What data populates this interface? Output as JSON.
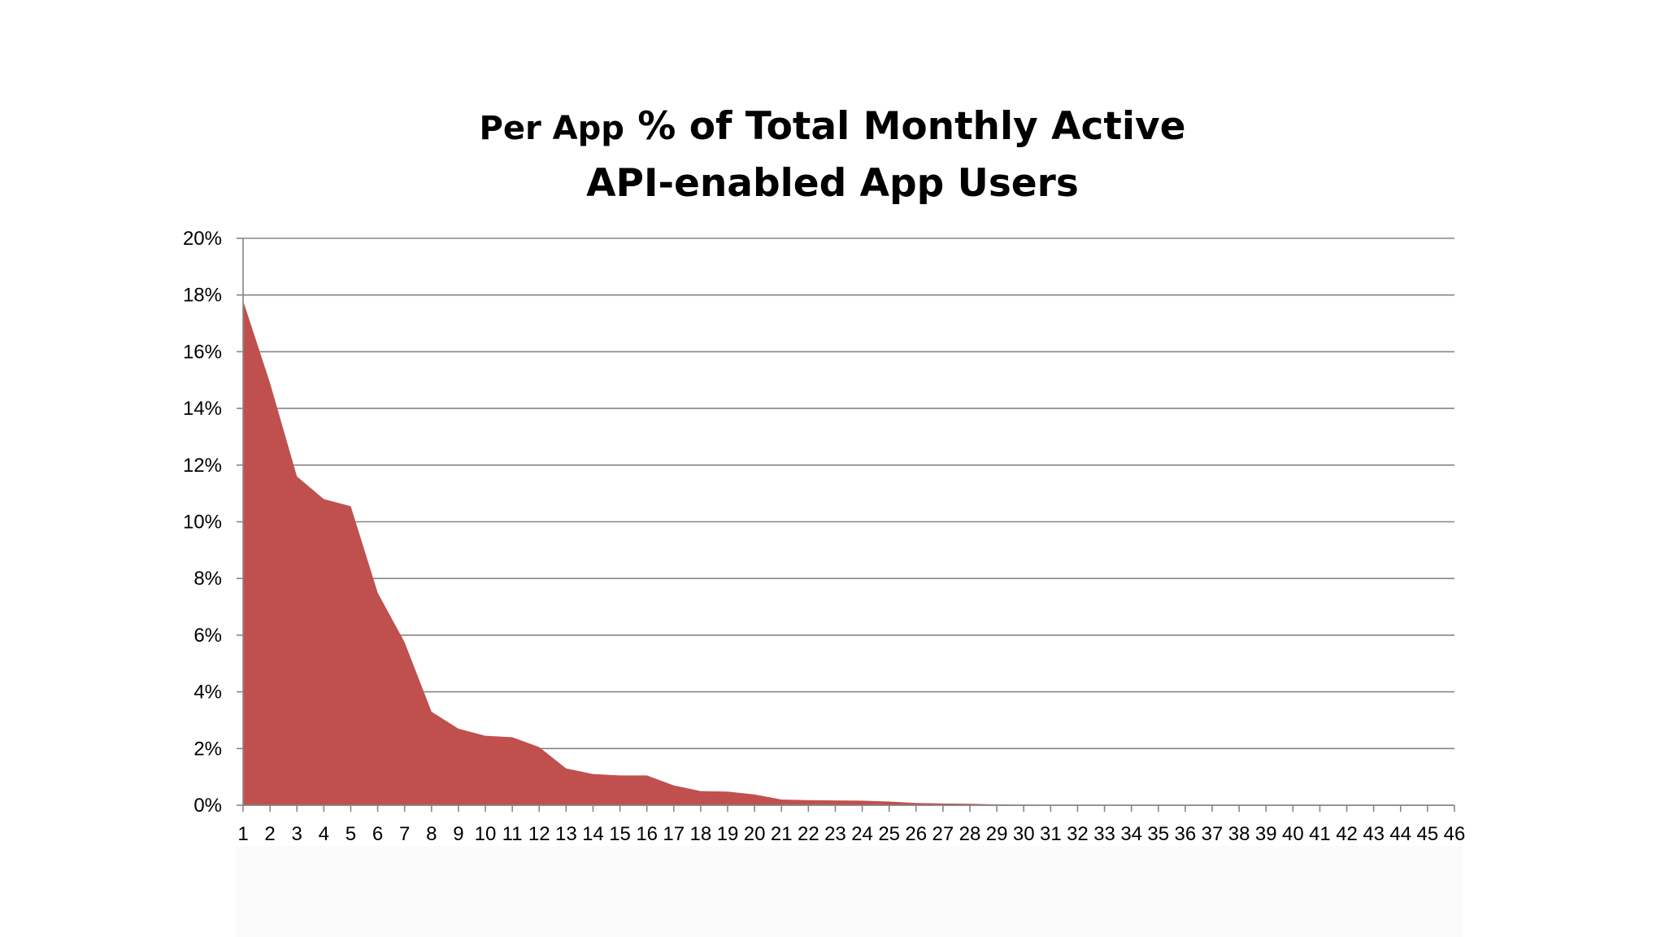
{
  "chart_data": {
    "type": "area",
    "title_line1_small": "Per App",
    "title_line1_rest": "% of Total Monthly Active",
    "title_line2": "API-enabled App Users",
    "xlabel": "",
    "ylabel": "",
    "ylim": [
      0,
      20
    ],
    "y_ticks": [
      0,
      2,
      4,
      6,
      8,
      10,
      12,
      14,
      16,
      18,
      20
    ],
    "y_tick_labels": [
      "0%",
      "2%",
      "4%",
      "6%",
      "8%",
      "10%",
      "12%",
      "14%",
      "16%",
      "18%",
      "20%"
    ],
    "categories": [
      "1",
      "2",
      "3",
      "4",
      "5",
      "6",
      "7",
      "8",
      "9",
      "10",
      "11",
      "12",
      "13",
      "14",
      "15",
      "16",
      "17",
      "18",
      "19",
      "20",
      "21",
      "22",
      "23",
      "24",
      "25",
      "26",
      "27",
      "28",
      "29",
      "30",
      "31",
      "32",
      "33",
      "34",
      "35",
      "36",
      "37",
      "38",
      "39",
      "40",
      "41",
      "42",
      "43",
      "44",
      "45",
      "46"
    ],
    "series": [
      {
        "name": "% of Total Monthly Active API-enabled App Users",
        "color": "#c0504d",
        "values": [
          17.8,
          14.9,
          11.6,
          10.8,
          10.55,
          7.5,
          5.75,
          3.3,
          2.7,
          2.45,
          2.4,
          2.05,
          1.3,
          1.1,
          1.05,
          1.05,
          0.7,
          0.5,
          0.48,
          0.38,
          0.2,
          0.18,
          0.17,
          0.16,
          0.13,
          0.08,
          0.06,
          0.05,
          0.03,
          0.02,
          0.01,
          0,
          0,
          0,
          0,
          0,
          0,
          0,
          0,
          0,
          0,
          0,
          0,
          0,
          0,
          0
        ]
      }
    ],
    "grid": true,
    "legend": "none"
  },
  "colors": {
    "area_fill": "#c0504d",
    "gridline": "#868686",
    "axis": "#868686"
  }
}
